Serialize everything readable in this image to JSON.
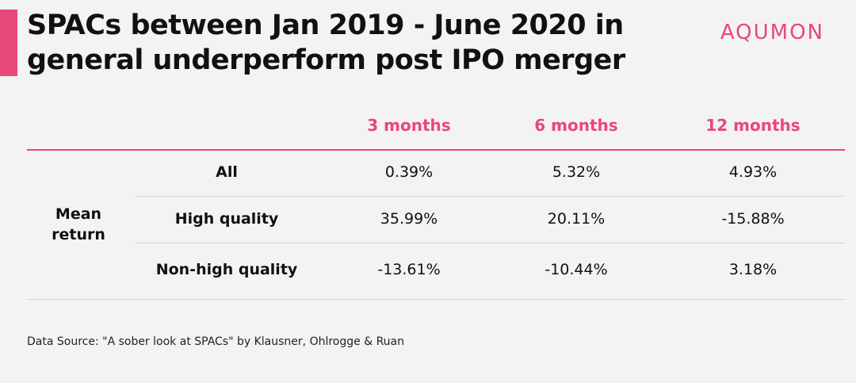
{
  "header": {
    "title_line1": "SPACs between Jan 2019 - June 2020 in",
    "title_line2": "general underperform post IPO merger",
    "brand": "AQUMON"
  },
  "colors": {
    "accent": "#e8477a",
    "background": "#f3f3f3",
    "text": "#111111",
    "rule": "#d4d4d4"
  },
  "chart_data": {
    "type": "table",
    "title": "SPACs between Jan 2019 - June 2020 in general underperform post IPO merger",
    "row_group_line1": "Mean",
    "row_group_line2": "return",
    "columns": [
      "3 months",
      "6 months",
      "12 months"
    ],
    "rows": [
      {
        "label": "All",
        "values": [
          "0.39%",
          "5.32%",
          "4.93%"
        ]
      },
      {
        "label": "High quality",
        "values": [
          "35.99%",
          "20.11%",
          "-15.88%"
        ]
      },
      {
        "label": "Non-high quality",
        "values": [
          "-13.61%",
          "-10.44%",
          "3.18%"
        ]
      }
    ]
  },
  "footer": {
    "source": "Data Source: \"A sober look at SPACs\" by Klausner, Ohlrogge & Ruan"
  }
}
